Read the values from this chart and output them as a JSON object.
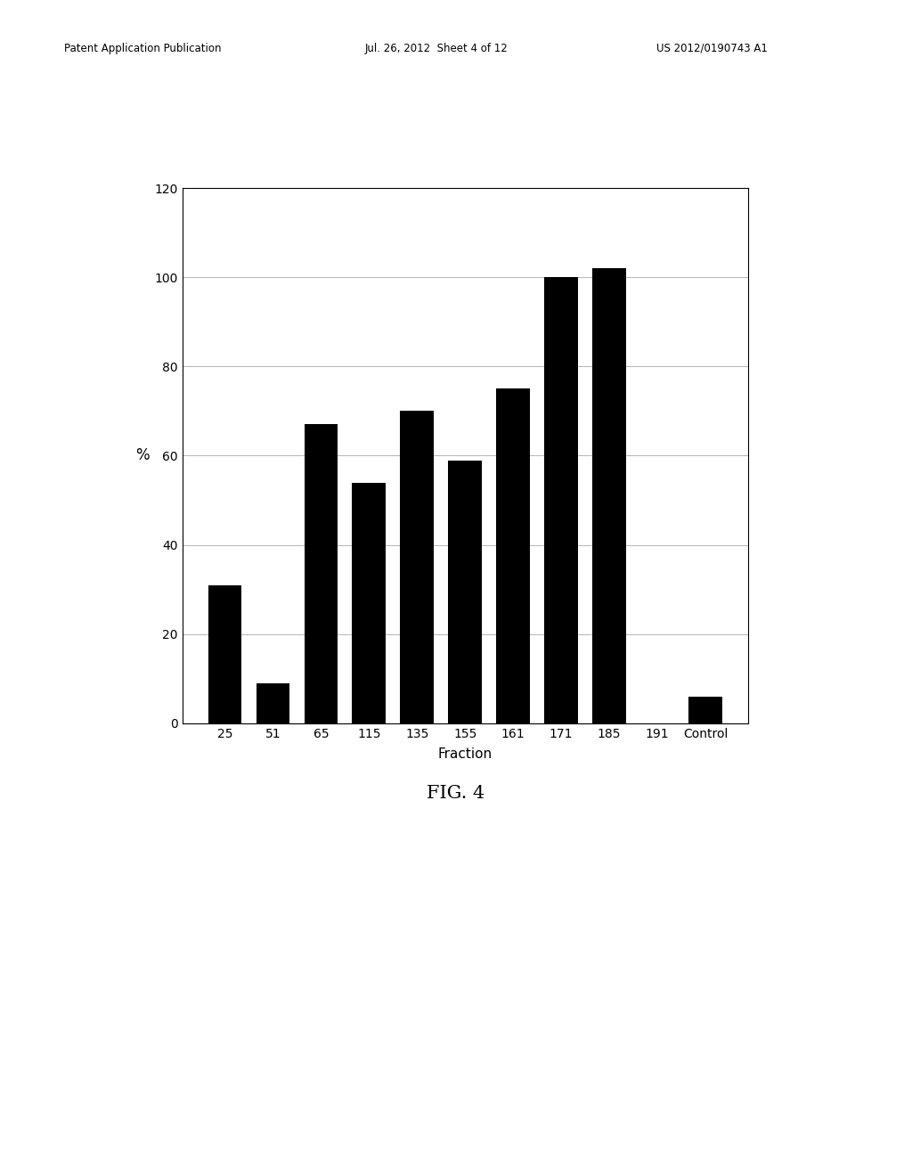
{
  "categories": [
    "25",
    "51",
    "65",
    "115",
    "135",
    "155",
    "161",
    "171",
    "185",
    "191",
    "Control"
  ],
  "values": [
    31,
    9,
    67,
    54,
    70,
    59,
    75,
    100,
    102,
    0,
    6
  ],
  "bar_color": "#000000",
  "ylabel": "%",
  "xlabel": "Fraction",
  "ylim": [
    0,
    120
  ],
  "yticks": [
    0,
    20,
    40,
    60,
    80,
    100,
    120
  ],
  "fig_caption": "FIG. 4",
  "background_color": "#ffffff",
  "bar_width": 0.7,
  "grid_color": "#999999",
  "header_left": "Patent Application Publication",
  "header_mid": "Jul. 26, 2012  Sheet 4 of 12",
  "header_right": "US 2012/0190743 A1"
}
